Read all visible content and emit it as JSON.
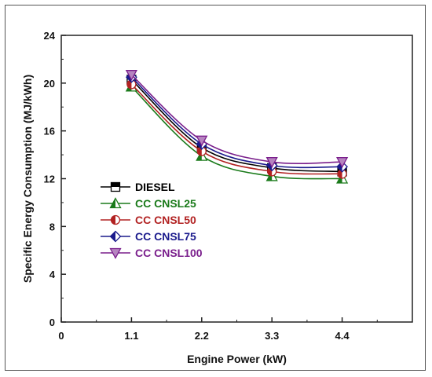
{
  "chart_data": {
    "type": "line",
    "title": "",
    "xlabel": "Engine Power (kW)",
    "ylabel": "Specific Energy Consumption (MJ/kWh)",
    "xlim": [
      0,
      5.5
    ],
    "ylim": [
      0,
      24
    ],
    "xticks": [
      0,
      1.1,
      2.2,
      3.3,
      4.4
    ],
    "xtick_labels": [
      "0",
      "1.1",
      "2.2",
      "3.3",
      "4.4"
    ],
    "yticks": [
      0,
      4,
      8,
      12,
      16,
      20,
      24
    ],
    "ytick_labels": [
      "0",
      "4",
      "8",
      "12",
      "16",
      "20",
      "24"
    ],
    "x": [
      1.1,
      2.2,
      3.3,
      4.4
    ],
    "legend_position": "left-center",
    "series": [
      {
        "name": "DIESEL",
        "color": "#000000",
        "marker": "square-half",
        "values": [
          20.3,
          14.6,
          12.9,
          12.6
        ]
      },
      {
        "name": "CC CNSL25",
        "color": "#1a7a1a",
        "marker": "triangle-up-half",
        "values": [
          19.7,
          13.9,
          12.2,
          12.0
        ]
      },
      {
        "name": "CC CNSL50",
        "color": "#b22222",
        "marker": "circle-half",
        "values": [
          19.9,
          14.3,
          12.6,
          12.4
        ]
      },
      {
        "name": "CC CNSL75",
        "color": "#1a1a8c",
        "marker": "diamond-half",
        "values": [
          20.5,
          14.9,
          13.1,
          13.0
        ]
      },
      {
        "name": "CC CNSL100",
        "color": "#7a1f8c",
        "marker": "triangle-down-half",
        "values": [
          20.7,
          15.2,
          13.4,
          13.4
        ]
      }
    ]
  }
}
